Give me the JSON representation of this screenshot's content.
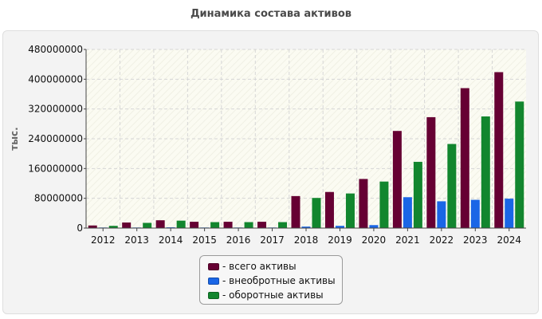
{
  "chart_data": {
    "type": "bar",
    "title": "Динамика состава активов",
    "ylabel": "тыс.",
    "xlabel": "",
    "ylim": [
      0,
      480000000
    ],
    "yticks": [
      0,
      80000000,
      160000000,
      240000000,
      320000000,
      400000000,
      480000000
    ],
    "ytick_labels": [
      "0",
      "80000000",
      "160000000",
      "240000000",
      "320000000",
      "400000000",
      "480000000"
    ],
    "categories": [
      "2012",
      "2013",
      "2014",
      "2015",
      "2016",
      "2017",
      "2018",
      "2019",
      "2020",
      "2021",
      "2022",
      "2023",
      "2024"
    ],
    "series": [
      {
        "name": "- всего активы",
        "color": "#660033",
        "values": [
          7000000,
          15000000,
          21000000,
          17000000,
          17000000,
          17000000,
          86000000,
          97000000,
          132000000,
          261000000,
          298000000,
          376000000,
          419000000
        ]
      },
      {
        "name": "- внеобротные активы",
        "color": "#1a66e6",
        "values": [
          1500000,
          1500000,
          2000000,
          1500000,
          1500000,
          1500000,
          4000000,
          6000000,
          8000000,
          83000000,
          72000000,
          76000000,
          79000000
        ]
      },
      {
        "name": "- оборотные активы",
        "color": "#12862e",
        "values": [
          6000000,
          14000000,
          20000000,
          16000000,
          16000000,
          16000000,
          81000000,
          93000000,
          125000000,
          178000000,
          226000000,
          300000000,
          340000000
        ]
      }
    ],
    "grid": true,
    "legend_position": "bottom-center"
  }
}
